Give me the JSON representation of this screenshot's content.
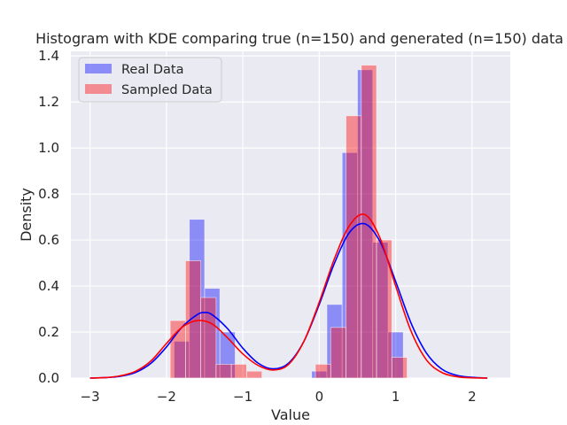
{
  "chart_data": {
    "type": "bar",
    "title": "Histogram with KDE comparing true (n=150) and generated (n=150) data",
    "xlabel": "Value",
    "ylabel": "Density",
    "xlim": [
      -3.25,
      2.5
    ],
    "ylim": [
      0,
      1.42
    ],
    "x_ticks": [
      -3,
      -2,
      -1,
      0,
      1,
      2
    ],
    "x_tick_labels": [
      "−3",
      "−2",
      "−1",
      "0",
      "1",
      "2"
    ],
    "y_ticks": [
      0.0,
      0.2,
      0.4,
      0.6,
      0.8,
      1.0,
      1.2,
      1.4
    ],
    "y_tick_labels": [
      "0.0",
      "0.2",
      "0.4",
      "0.6",
      "0.8",
      "1.0",
      "1.2",
      "1.4"
    ],
    "grid": true,
    "legend_position": "top-left",
    "background": "#eaeaf2",
    "series": [
      {
        "name": "Real Data",
        "kind": "histogram",
        "color": "#0000ff",
        "opacity": 0.4,
        "bin_width": 0.2,
        "bins": [
          {
            "x0": -1.9,
            "x1": -1.7,
            "y": 0.16
          },
          {
            "x0": -1.7,
            "x1": -1.5,
            "y": 0.69
          },
          {
            "x0": -1.5,
            "x1": -1.3,
            "y": 0.39
          },
          {
            "x0": -1.3,
            "x1": -1.1,
            "y": 0.2
          },
          {
            "x0": -0.1,
            "x1": 0.1,
            "y": 0.03
          },
          {
            "x0": 0.1,
            "x1": 0.3,
            "y": 0.32
          },
          {
            "x0": 0.3,
            "x1": 0.5,
            "y": 0.98
          },
          {
            "x0": 0.5,
            "x1": 0.7,
            "y": 1.34
          },
          {
            "x0": 0.7,
            "x1": 0.9,
            "y": 0.59
          },
          {
            "x0": 0.9,
            "x1": 1.1,
            "y": 0.2
          }
        ]
      },
      {
        "name": "Sampled Data",
        "kind": "histogram",
        "color": "#ff0000",
        "opacity": 0.4,
        "bin_width": 0.2,
        "bins": [
          {
            "x0": -1.95,
            "x1": -1.75,
            "y": 0.25
          },
          {
            "x0": -1.75,
            "x1": -1.55,
            "y": 0.51
          },
          {
            "x0": -1.55,
            "x1": -1.35,
            "y": 0.35
          },
          {
            "x0": -1.35,
            "x1": -1.15,
            "y": 0.06
          },
          {
            "x0": -1.15,
            "x1": -0.95,
            "y": 0.06
          },
          {
            "x0": -0.95,
            "x1": -0.75,
            "y": 0.03
          },
          {
            "x0": -0.05,
            "x1": 0.15,
            "y": 0.06
          },
          {
            "x0": 0.15,
            "x1": 0.35,
            "y": 0.22
          },
          {
            "x0": 0.35,
            "x1": 0.55,
            "y": 1.14
          },
          {
            "x0": 0.55,
            "x1": 0.75,
            "y": 1.36
          },
          {
            "x0": 0.75,
            "x1": 0.95,
            "y": 0.6
          },
          {
            "x0": 0.95,
            "x1": 1.15,
            "y": 0.09
          }
        ]
      },
      {
        "kind": "kde",
        "color": "#0000ff",
        "x": [
          -3.0,
          -2.8,
          -2.6,
          -2.4,
          -2.2,
          -2.0,
          -1.8,
          -1.6,
          -1.5,
          -1.4,
          -1.2,
          -1.0,
          -0.8,
          -0.6,
          -0.4,
          -0.2,
          0.0,
          0.2,
          0.4,
          0.6,
          0.8,
          1.0,
          1.2,
          1.4,
          1.6,
          1.8,
          2.0,
          2.2
        ],
        "y": [
          0.0,
          0.002,
          0.008,
          0.025,
          0.065,
          0.135,
          0.22,
          0.275,
          0.285,
          0.275,
          0.215,
          0.13,
          0.065,
          0.04,
          0.065,
          0.16,
          0.32,
          0.5,
          0.635,
          0.67,
          0.59,
          0.42,
          0.24,
          0.11,
          0.04,
          0.012,
          0.003,
          0.0
        ]
      },
      {
        "kind": "kde",
        "color": "#ff0000",
        "x": [
          -3.0,
          -2.8,
          -2.6,
          -2.4,
          -2.2,
          -2.0,
          -1.8,
          -1.6,
          -1.4,
          -1.2,
          -1.0,
          -0.8,
          -0.6,
          -0.4,
          -0.2,
          0.0,
          0.2,
          0.4,
          0.6,
          0.8,
          1.0,
          1.2,
          1.4,
          1.6,
          1.8,
          2.0,
          2.2
        ],
        "y": [
          0.0,
          0.002,
          0.01,
          0.03,
          0.075,
          0.15,
          0.22,
          0.25,
          0.235,
          0.175,
          0.105,
          0.055,
          0.035,
          0.06,
          0.16,
          0.33,
          0.52,
          0.665,
          0.71,
          0.605,
          0.4,
          0.205,
          0.08,
          0.025,
          0.006,
          0.001,
          0.0
        ]
      }
    ],
    "legend": [
      {
        "label": "Real Data",
        "color": "#0000ff",
        "opacity": 0.4
      },
      {
        "label": "Sampled Data",
        "color": "#ff0000",
        "opacity": 0.4
      }
    ]
  }
}
